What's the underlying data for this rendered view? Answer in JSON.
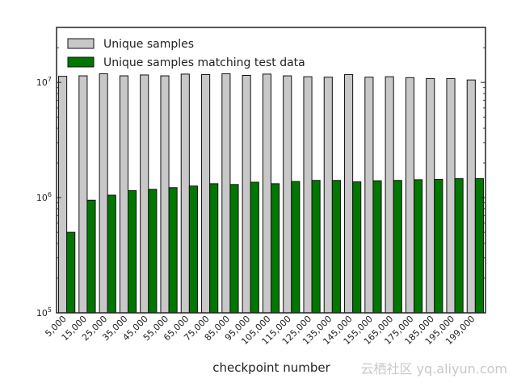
{
  "chart_data": {
    "type": "bar",
    "yscale": "log",
    "ylim": [
      100000,
      30000000
    ],
    "y_ticks": [
      {
        "value": 100000,
        "base": "10",
        "exp": "5"
      },
      {
        "value": 1000000,
        "base": "10",
        "exp": "6"
      },
      {
        "value": 10000000,
        "base": "10",
        "exp": "7"
      }
    ],
    "xlabel": "checkpoint number",
    "categories": [
      "5,000",
      "15,000",
      "25,000",
      "35,000",
      "45,000",
      "55,000",
      "65,000",
      "75,000",
      "85,000",
      "95,000",
      "105,000",
      "115,000",
      "125,000",
      "135,000",
      "145,000",
      "155,000",
      "165,000",
      "175,000",
      "185,000",
      "195,000",
      "199,000"
    ],
    "series": [
      {
        "name": "Unique samples",
        "color": "#c8c8c8",
        "values": [
          11300000,
          11400000,
          11900000,
          11400000,
          11600000,
          11400000,
          11800000,
          11700000,
          11900000,
          11500000,
          11800000,
          11400000,
          11200000,
          11100000,
          11700000,
          11100000,
          11200000,
          11000000,
          10800000,
          10800000,
          10500000
        ]
      },
      {
        "name": "Unique samples matching test data",
        "color": "#007700",
        "values": [
          500000,
          950000,
          1050000,
          1150000,
          1180000,
          1220000,
          1260000,
          1320000,
          1300000,
          1360000,
          1320000,
          1380000,
          1410000,
          1410000,
          1370000,
          1400000,
          1410000,
          1430000,
          1440000,
          1460000,
          1460000
        ]
      }
    ],
    "legend_position": "top-left",
    "grid": false
  },
  "watermark": "云栖社区 yq.aliyun.com"
}
